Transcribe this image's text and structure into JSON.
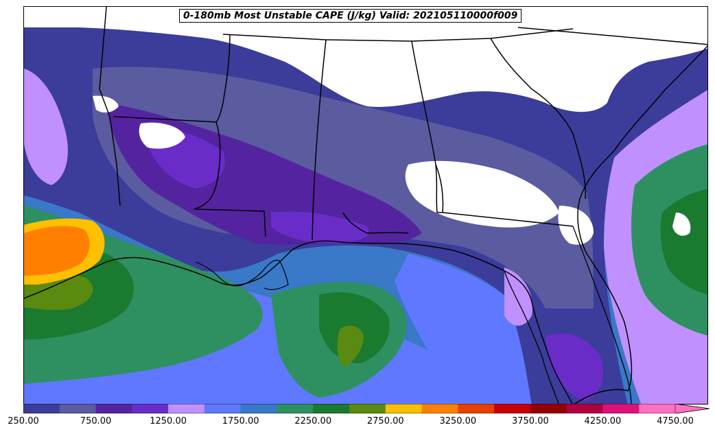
{
  "title": "0-180mb Most Unstable CAPE (J/kg) Valid: 202105110000f009",
  "colorbar": {
    "ticks": [
      "250.00",
      "750.00",
      "1250.00",
      "1750.00",
      "2250.00",
      "2750.00",
      "3250.00",
      "3750.00",
      "4250.00",
      "4750.00"
    ],
    "colors": [
      "#3c3c9b",
      "#5b5ba0",
      "#5424a0",
      "#6a2cc8",
      "#c090ff",
      "#6078ff",
      "#3a78c8",
      "#2e9060",
      "#1a7a30",
      "#5a8a10",
      "#ffc000",
      "#ff8000",
      "#e84000",
      "#c80000",
      "#960000",
      "#b00040",
      "#e0107a",
      "#ff70c0"
    ],
    "extend_color": "#ff70c0"
  },
  "map_colors": {
    "ocean_deep": "#3a78c8",
    "ocean_mid": "#6078ff",
    "gulf_green": "#2e9060",
    "dark_green": "#1a7a30",
    "olive": "#5a8a10",
    "purple": "#5424a0",
    "violet": "#6a2cc8",
    "navy": "#3c3c9b",
    "slate": "#5b5ba0",
    "lavender": "#c090ff",
    "orange": "#ff8000",
    "yellow": "#ffc000",
    "white": "#ffffff"
  }
}
